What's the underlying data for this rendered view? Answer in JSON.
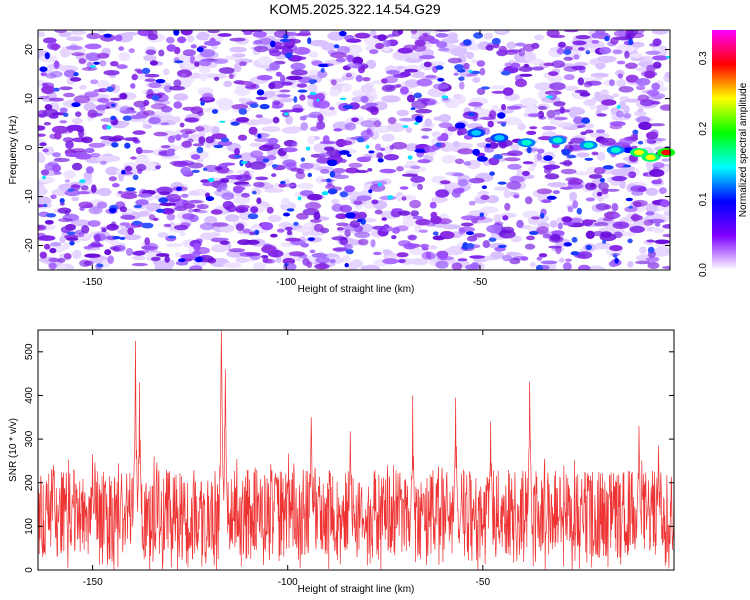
{
  "page_title": "KOM5.2025.322.14.54.G29",
  "chart_data": [
    {
      "type": "heatmap",
      "xlabel": "Height of straight line (km)",
      "ylabel": "Frequency (Hz)",
      "xlim": [
        -164,
        -1
      ],
      "ylim": [
        -25,
        24
      ],
      "x_ticks": [
        -150,
        -100,
        -50
      ],
      "y_ticks": [
        -20,
        -10,
        0,
        10,
        20
      ],
      "colorbar": {
        "label": "Normalized spectral amplitude",
        "range": [
          0,
          0.34
        ],
        "ticks": [
          0.0,
          0.1,
          0.2,
          0.3
        ],
        "colormap": [
          "#ff00ff",
          "#ff0000",
          "#ffff00",
          "#00ff00",
          "#00ffff",
          "#0000ff",
          "#7f00ff",
          "#ffffff"
        ]
      },
      "signal_track": [
        {
          "x": -51,
          "y": 3,
          "v": 0.12
        },
        {
          "x": -45,
          "y": 2,
          "v": 0.14
        },
        {
          "x": -38,
          "y": 1,
          "v": 0.22
        },
        {
          "x": -30,
          "y": 1.5,
          "v": 0.18
        },
        {
          "x": -22,
          "y": 0.5,
          "v": 0.2
        },
        {
          "x": -15,
          "y": -0.5,
          "v": 0.22
        },
        {
          "x": -9,
          "y": -1,
          "v": 0.26
        },
        {
          "x": -6,
          "y": -2,
          "v": 0.28
        },
        {
          "x": -2,
          "y": -1,
          "v": 0.34
        }
      ]
    },
    {
      "type": "line",
      "xlabel": "Height of straight line (km)",
      "ylabel": "SNR (10 * v/v)",
      "xlim": [
        -164,
        -1
      ],
      "ylim": [
        0,
        550
      ],
      "x_ticks": [
        -150,
        -100,
        -50
      ],
      "y_ticks": [
        0,
        100,
        200,
        300,
        400,
        500
      ],
      "color": "#ee3333",
      "baseline_range": [
        30,
        230
      ],
      "peaks": [
        {
          "x": -139,
          "y": 525
        },
        {
          "x": -138,
          "y": 430
        },
        {
          "x": -117,
          "y": 548
        },
        {
          "x": -116,
          "y": 460
        },
        {
          "x": -94,
          "y": 350
        },
        {
          "x": -57,
          "y": 395
        },
        {
          "x": -48,
          "y": 340
        },
        {
          "x": -38,
          "y": 432
        },
        {
          "x": -68,
          "y": 400
        },
        {
          "x": -84,
          "y": 318
        },
        {
          "x": -10,
          "y": 330
        },
        {
          "x": -5,
          "y": 285
        },
        {
          "x": -160,
          "y": 240
        },
        {
          "x": -150,
          "y": 265
        }
      ]
    }
  ]
}
